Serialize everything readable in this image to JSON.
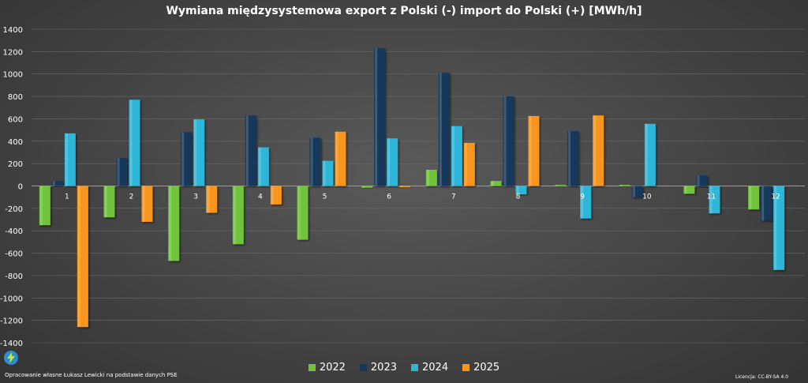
{
  "chart_data": {
    "type": "bar",
    "title": "Wymiana międzysystemowa export z Polski (-) import do Polski (+) [MWh/h]",
    "categories": [
      "1",
      "2",
      "3",
      "4",
      "5",
      "6",
      "7",
      "8",
      "9",
      "10",
      "11",
      "12"
    ],
    "ylim": [
      -1400,
      1400
    ],
    "yticks": [
      -1400,
      -1200,
      -1000,
      -800,
      -600,
      -400,
      -200,
      0,
      200,
      400,
      600,
      800,
      1000,
      1200,
      1400
    ],
    "grid": true,
    "legend_position": "bottom",
    "series": [
      {
        "name": "2022",
        "color": "#6fc43a",
        "values": [
          -350,
          -280,
          -670,
          -520,
          -480,
          -15,
          145,
          45,
          10,
          10,
          -70,
          -210
        ]
      },
      {
        "name": "2023",
        "color": "#16375a",
        "values": [
          45,
          250,
          480,
          630,
          430,
          1230,
          1010,
          800,
          490,
          -100,
          95,
          -310
        ]
      },
      {
        "name": "2024",
        "color": "#2fb6d8",
        "values": [
          470,
          770,
          595,
          345,
          225,
          425,
          535,
          -75,
          -290,
          555,
          -245,
          -750
        ]
      },
      {
        "name": "2025",
        "color": "#f7951d",
        "values": [
          -1260,
          -320,
          -240,
          -165,
          485,
          -10,
          385,
          625,
          630,
          null,
          null,
          null
        ]
      }
    ]
  },
  "source_note": "Opracowanie własne Łukasz Lewicki na podstawie danych PSE",
  "license_note": "Licencja: CC-BY-SA 4.0"
}
